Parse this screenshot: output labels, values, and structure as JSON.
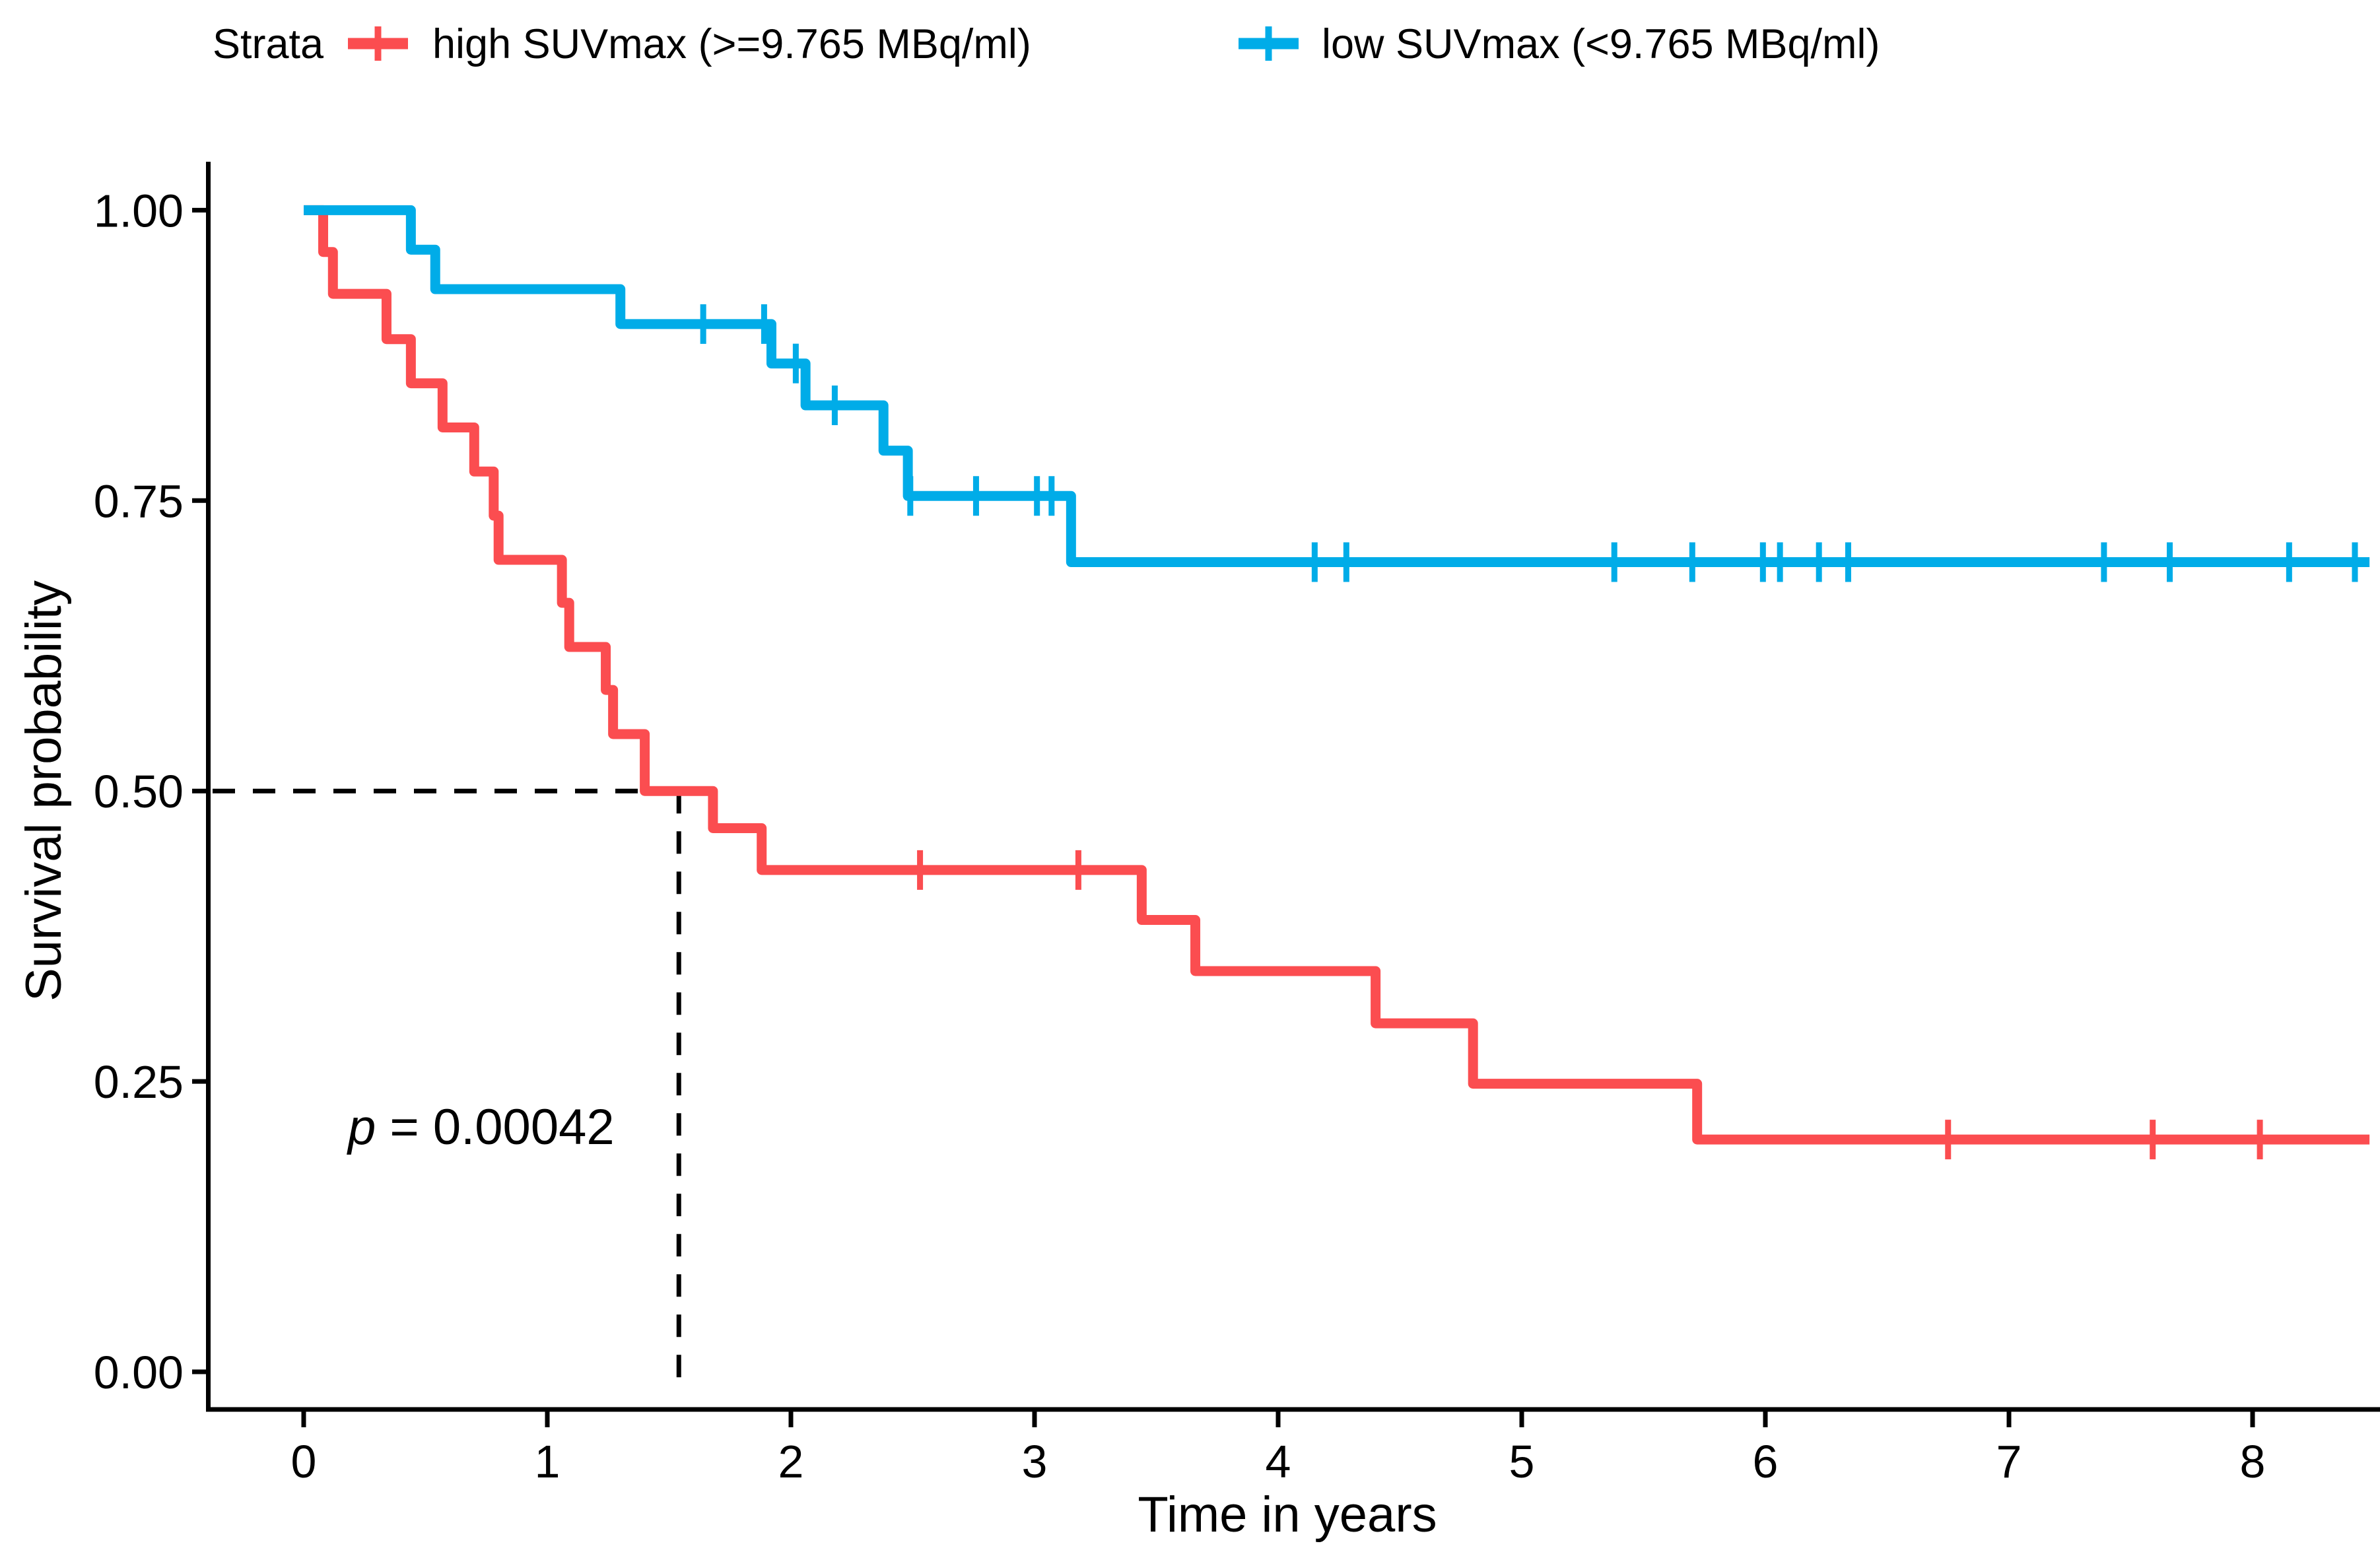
{
  "figure": {
    "background": "#ffffff",
    "text_color": "#000000",
    "axis_color": "#000000"
  },
  "chart_data": {
    "type": "line",
    "subtype": "kaplan-meier-step",
    "title": "",
    "xlabel": "Time in years",
    "ylabel": "Survival probability",
    "xlim": [
      -0.38,
      8.52
    ],
    "ylim": [
      -0.03,
      1.03
    ],
    "xticks": [
      0,
      1,
      2,
      3,
      4,
      5,
      6,
      7,
      8
    ],
    "xtick_labels": [
      "0",
      "1",
      "2",
      "3",
      "4",
      "5",
      "6",
      "7",
      "8"
    ],
    "yticks": [
      0.0,
      0.25,
      0.5,
      0.75,
      1.0
    ],
    "ytick_labels": [
      "0.00",
      "0.25",
      "0.50",
      "0.75",
      "1.00"
    ],
    "grid": false,
    "legend_position": "top",
    "legend_title": "Strata",
    "series": [
      {
        "name": "high SUVmax (>=9.765 MBq/ml)",
        "color": "#FB4D50",
        "end_time": 8.48,
        "steps": [
          [
            0.0,
            1.0
          ],
          [
            0.08,
            0.964
          ],
          [
            0.12,
            0.928
          ],
          [
            0.34,
            0.889
          ],
          [
            0.44,
            0.851
          ],
          [
            0.57,
            0.813
          ],
          [
            0.7,
            0.775
          ],
          [
            0.78,
            0.737
          ],
          [
            0.8,
            0.699
          ],
          [
            1.06,
            0.662
          ],
          [
            1.09,
            0.624
          ],
          [
            1.24,
            0.587
          ],
          [
            1.27,
            0.549
          ],
          [
            1.4,
            0.5
          ],
          [
            1.68,
            0.468
          ],
          [
            1.88,
            0.432
          ],
          [
            3.44,
            0.389
          ],
          [
            3.66,
            0.345
          ],
          [
            4.4,
            0.3
          ],
          [
            4.8,
            0.248
          ],
          [
            5.72,
            0.2
          ]
        ],
        "censors": [
          [
            2.53,
            0.432
          ],
          [
            3.18,
            0.432
          ],
          [
            6.75,
            0.2
          ],
          [
            7.59,
            0.2
          ],
          [
            8.03,
            0.2
          ]
        ]
      },
      {
        "name": "low SUVmax (<9.765 MBq/ml)",
        "color": "#00ACE8",
        "end_time": 8.48,
        "steps": [
          [
            0.0,
            1.0
          ],
          [
            0.44,
            0.966
          ],
          [
            0.54,
            0.932
          ],
          [
            1.3,
            0.902
          ],
          [
            1.92,
            0.868
          ],
          [
            2.06,
            0.832
          ],
          [
            2.38,
            0.793
          ],
          [
            2.48,
            0.754
          ],
          [
            3.15,
            0.697
          ]
        ],
        "censors": [
          [
            1.64,
            0.902
          ],
          [
            1.89,
            0.902
          ],
          [
            2.02,
            0.868
          ],
          [
            2.18,
            0.832
          ],
          [
            2.49,
            0.754
          ],
          [
            2.76,
            0.754
          ],
          [
            3.01,
            0.754
          ],
          [
            3.07,
            0.754
          ],
          [
            4.15,
            0.697
          ],
          [
            4.28,
            0.697
          ],
          [
            5.38,
            0.697
          ],
          [
            5.7,
            0.697
          ],
          [
            5.99,
            0.697
          ],
          [
            6.06,
            0.697
          ],
          [
            6.22,
            0.697
          ],
          [
            6.34,
            0.697
          ],
          [
            7.39,
            0.697
          ],
          [
            7.66,
            0.697
          ],
          [
            8.15,
            0.697
          ],
          [
            8.42,
            0.697
          ]
        ]
      }
    ],
    "annotations": {
      "p_label_prefix": "p",
      "p_label_rest": " = 0.00042",
      "median_line": {
        "x": 1.54,
        "y": 0.5
      }
    }
  }
}
